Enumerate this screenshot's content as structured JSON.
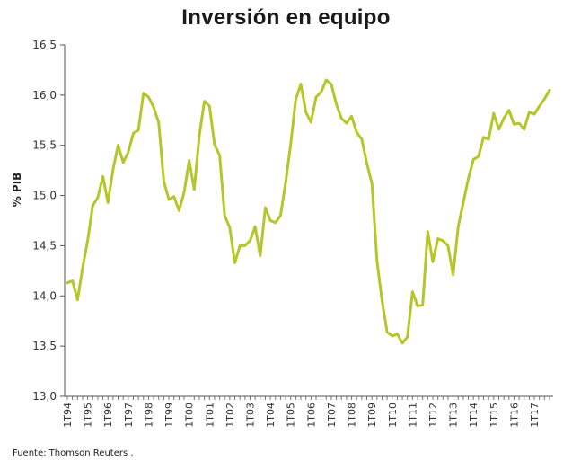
{
  "chart_data": {
    "type": "line",
    "title": "Inversión en equipo",
    "xlabel": "",
    "ylabel": "% PIB",
    "ylim": [
      13.0,
      16.5
    ],
    "yticks": [
      "13,0",
      "13,5",
      "14,0",
      "14,5",
      "15,0",
      "15,5",
      "16,0",
      "16,5"
    ],
    "ytick_values": [
      13.0,
      13.5,
      14.0,
      14.5,
      15.0,
      15.5,
      16.0,
      16.5
    ],
    "xtick_labels": [
      "1T94",
      "1T95",
      "1T96",
      "1T97",
      "1T98",
      "1T99",
      "1T00",
      "1T01",
      "1T02",
      "1T03",
      "1T04",
      "1T05",
      "1T06",
      "1T07",
      "1T08",
      "1T09",
      "1T10",
      "1T11",
      "1T12",
      "1T13",
      "1T14",
      "1T15",
      "1T16",
      "1T17"
    ],
    "grid": false,
    "line_color": "#b5c52a",
    "series": [
      {
        "name": "Inversión en equipo (% PIB)",
        "values": [
          14.13,
          14.15,
          13.96,
          14.28,
          14.55,
          14.9,
          14.98,
          15.19,
          14.93,
          15.26,
          15.5,
          15.33,
          15.43,
          15.62,
          15.65,
          16.02,
          15.98,
          15.88,
          15.73,
          15.14,
          14.96,
          14.99,
          14.85,
          15.03,
          15.35,
          15.06,
          15.6,
          15.94,
          15.89,
          15.51,
          15.4,
          14.8,
          14.68,
          14.33,
          14.5,
          14.5,
          14.55,
          14.69,
          14.4,
          14.88,
          14.75,
          14.73,
          14.8,
          15.13,
          15.51,
          15.96,
          16.11,
          15.83,
          15.73,
          15.98,
          16.03,
          16.15,
          16.11,
          15.91,
          15.77,
          15.72,
          15.79,
          15.63,
          15.56,
          15.32,
          15.12,
          14.35,
          13.95,
          13.64,
          13.6,
          13.62,
          13.53,
          13.59,
          14.04,
          13.9,
          13.91,
          14.64,
          14.34,
          14.57,
          14.55,
          14.5,
          14.21,
          14.69,
          14.93,
          15.17,
          15.36,
          15.39,
          15.58,
          15.56,
          15.82,
          15.66,
          15.77,
          15.85,
          15.71,
          15.72,
          15.66,
          15.83,
          15.81,
          15.89,
          15.96,
          16.05
        ]
      }
    ]
  },
  "source": "Fuente: Thomson Reuters ."
}
